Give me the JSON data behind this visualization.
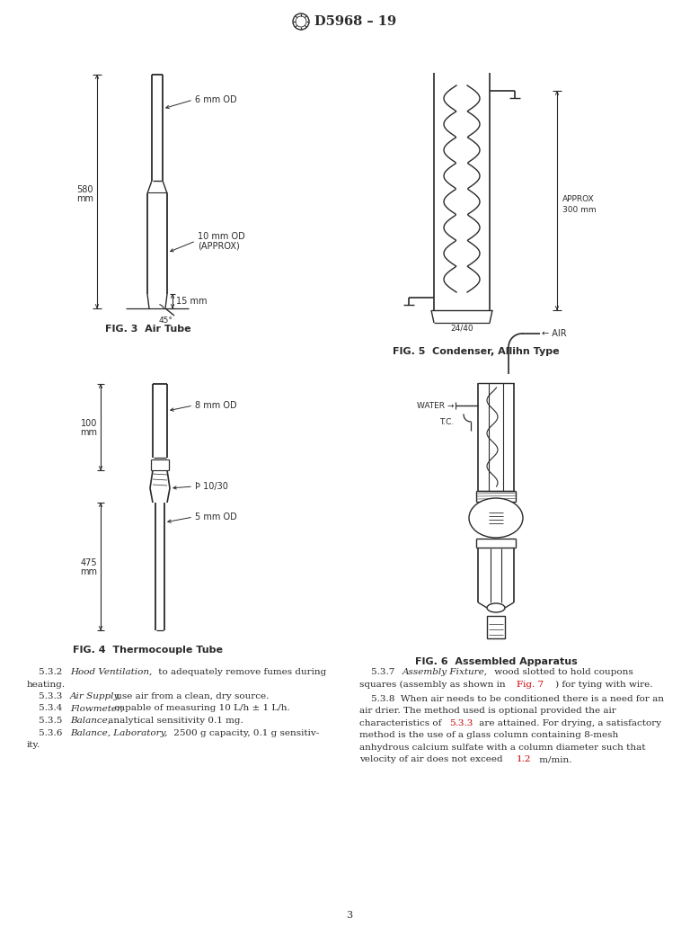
{
  "title": "D5968 – 19",
  "bg_color": "#ffffff",
  "line_color": "#2a2a2a",
  "text_color": "#2a2a2a",
  "red_color": "#cc0000",
  "page_number": "3",
  "fig3_caption": "FIG. 3  Air Tube",
  "fig4_caption": "FIG. 4  Thermocouple Tube",
  "fig5_caption": "FIG. 5  Condenser, Allihn Type",
  "fig6_caption": "FIG. 6  Assembled Apparatus"
}
